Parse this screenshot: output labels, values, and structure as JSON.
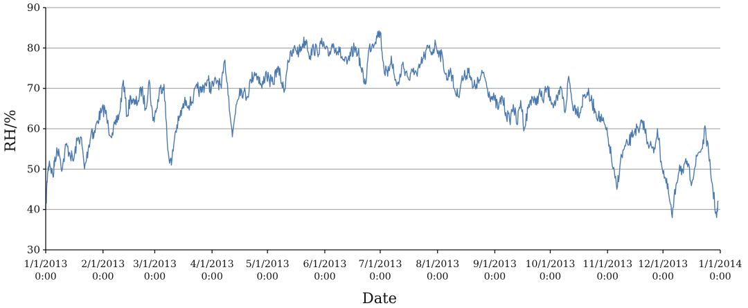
{
  "chart_data": {
    "type": "line",
    "xlabel": "Date",
    "ylabel": "RH/%",
    "ylim": [
      30,
      90
    ],
    "yticks": [
      30,
      40,
      50,
      60,
      70,
      80,
      90
    ],
    "xlim": [
      "2013-01-01",
      "2014-01-01"
    ],
    "grid": "horizontal",
    "xticks": [
      {
        "date": "2013-01-01",
        "label1": "1/1/2013",
        "label2": "0:00"
      },
      {
        "date": "2013-02-01",
        "label1": "2/1/2013",
        "label2": "0:00"
      },
      {
        "date": "2013-03-01",
        "label1": "3/1/2013",
        "label2": "0:00"
      },
      {
        "date": "2013-04-01",
        "label1": "4/1/2013",
        "label2": "0:00"
      },
      {
        "date": "2013-05-01",
        "label1": "5/1/2013",
        "label2": "0:00"
      },
      {
        "date": "2013-06-01",
        "label1": "6/1/2013",
        "label2": "0:00"
      },
      {
        "date": "2013-07-01",
        "label1": "7/1/2013",
        "label2": "0:00"
      },
      {
        "date": "2013-08-01",
        "label1": "8/1/2013",
        "label2": "0:00"
      },
      {
        "date": "2013-09-01",
        "label1": "9/1/2013",
        "label2": "0:00"
      },
      {
        "date": "2013-10-01",
        "label1": "10/1/2013",
        "label2": "0:00"
      },
      {
        "date": "2013-11-01",
        "label1": "11/1/2013",
        "label2": "0:00"
      },
      {
        "date": "2013-12-01",
        "label1": "12/1/2013",
        "label2": "0:00"
      },
      {
        "date": "2014-01-01",
        "label1": "1/1/2014",
        "label2": "0:00"
      }
    ],
    "series": [
      {
        "color": "#4a78b0",
        "x": [
          "2013-01-01",
          "2013-01-02",
          "2013-01-03",
          "2013-01-05",
          "2013-01-06",
          "2013-01-08",
          "2013-01-10",
          "2013-01-12",
          "2013-01-14",
          "2013-01-16",
          "2013-01-18",
          "2013-01-20",
          "2013-01-22",
          "2013-01-24",
          "2013-01-26",
          "2013-01-27",
          "2013-01-29",
          "2013-01-31",
          "2013-02-02",
          "2013-02-04",
          "2013-02-06",
          "2013-02-08",
          "2013-02-10",
          "2013-02-12",
          "2013-02-14",
          "2013-02-16",
          "2013-02-18",
          "2013-02-20",
          "2013-02-22",
          "2013-02-24",
          "2013-02-26",
          "2013-02-28",
          "2013-03-02",
          "2013-03-04",
          "2013-03-06",
          "2013-03-08",
          "2013-03-10",
          "2013-03-12",
          "2013-03-14",
          "2013-03-16",
          "2013-03-18",
          "2013-03-20",
          "2013-03-22",
          "2013-03-24",
          "2013-03-26",
          "2013-03-28",
          "2013-03-30",
          "2013-03-31",
          "2013-04-02",
          "2013-04-04",
          "2013-04-06",
          "2013-04-08",
          "2013-04-10",
          "2013-04-12",
          "2013-04-14",
          "2013-04-16",
          "2013-04-18",
          "2013-04-20",
          "2013-04-22",
          "2013-04-24",
          "2013-04-26",
          "2013-04-28",
          "2013-04-30",
          "2013-05-02",
          "2013-05-04",
          "2013-05-06",
          "2013-05-08",
          "2013-05-10",
          "2013-05-12",
          "2013-05-14",
          "2013-05-16",
          "2013-05-18",
          "2013-05-20",
          "2013-05-22",
          "2013-05-24",
          "2013-05-26",
          "2013-05-28",
          "2013-05-30",
          "2013-06-01",
          "2013-06-03",
          "2013-06-05",
          "2013-06-07",
          "2013-06-09",
          "2013-06-11",
          "2013-06-13",
          "2013-06-15",
          "2013-06-17",
          "2013-06-19",
          "2013-06-21",
          "2013-06-23",
          "2013-06-25",
          "2013-06-27",
          "2013-06-29",
          "2013-07-01",
          "2013-07-03",
          "2013-07-05",
          "2013-07-07",
          "2013-07-09",
          "2013-07-11",
          "2013-07-13",
          "2013-07-15",
          "2013-07-17",
          "2013-07-19",
          "2013-07-21",
          "2013-07-23",
          "2013-07-25",
          "2013-07-27",
          "2013-07-29",
          "2013-07-31",
          "2013-08-02",
          "2013-08-04",
          "2013-08-06",
          "2013-08-08",
          "2013-08-10",
          "2013-08-12",
          "2013-08-14",
          "2013-08-16",
          "2013-08-18",
          "2013-08-20",
          "2013-08-22",
          "2013-08-24",
          "2013-08-26",
          "2013-08-28",
          "2013-08-30",
          "2013-09-01",
          "2013-09-03",
          "2013-09-05",
          "2013-09-07",
          "2013-09-09",
          "2013-09-11",
          "2013-09-13",
          "2013-09-15",
          "2013-09-17",
          "2013-09-19",
          "2013-09-21",
          "2013-09-23",
          "2013-09-25",
          "2013-09-27",
          "2013-09-29",
          "2013-10-01",
          "2013-10-03",
          "2013-10-05",
          "2013-10-07",
          "2013-10-09",
          "2013-10-11",
          "2013-10-13",
          "2013-10-15",
          "2013-10-17",
          "2013-10-19",
          "2013-10-21",
          "2013-10-23",
          "2013-10-25",
          "2013-10-27",
          "2013-10-29",
          "2013-10-31",
          "2013-11-02",
          "2013-11-04",
          "2013-11-06",
          "2013-11-08",
          "2013-11-10",
          "2013-11-12",
          "2013-11-14",
          "2013-11-16",
          "2013-11-18",
          "2013-11-20",
          "2013-11-22",
          "2013-11-24",
          "2013-11-26",
          "2013-11-28",
          "2013-11-30",
          "2013-12-02",
          "2013-12-04",
          "2013-12-06",
          "2013-12-08",
          "2013-12-10",
          "2013-12-12",
          "2013-12-14",
          "2013-12-16",
          "2013-12-18",
          "2013-12-20",
          "2013-12-22",
          "2013-12-24",
          "2013-12-26",
          "2013-12-28",
          "2013-12-30",
          "2013-12-31"
        ],
        "y": [
          40,
          49,
          52,
          48,
          53,
          55,
          50,
          56,
          54,
          52,
          57,
          58,
          50,
          55,
          60,
          58,
          62,
          64,
          65,
          60,
          59,
          61,
          64,
          72,
          63,
          68,
          66,
          67,
          70,
          65,
          72,
          62,
          65,
          70,
          71,
          55,
          51,
          59,
          62,
          65,
          67,
          66,
          68,
          70,
          69,
          71,
          72,
          70,
          71,
          72,
          70,
          77,
          68,
          58,
          66,
          70,
          69,
          68,
          72,
          74,
          73,
          70,
          74,
          72,
          71,
          75,
          73,
          69,
          77,
          78,
          80,
          79,
          81,
          82,
          78,
          80,
          79,
          81,
          80,
          78,
          81,
          80,
          79,
          77,
          76,
          78,
          80,
          79,
          74,
          71,
          80,
          81,
          83,
          84,
          75,
          73,
          78,
          72,
          71,
          76,
          74,
          72,
          75,
          73,
          76,
          78,
          80,
          79,
          81,
          79,
          77,
          72,
          75,
          70,
          68,
          72,
          73,
          75,
          70,
          71,
          72,
          74,
          70,
          68,
          67,
          65,
          68,
          64,
          62,
          66,
          61,
          67,
          60,
          65,
          68,
          66,
          69,
          67,
          70,
          68,
          66,
          67,
          70,
          64,
          73,
          66,
          65,
          64,
          68,
          69,
          67,
          65,
          63,
          62,
          60,
          56,
          50,
          45,
          52,
          55,
          56,
          58,
          60,
          59,
          62,
          58,
          56,
          54,
          60,
          52,
          48,
          44,
          38,
          46,
          51,
          49,
          52,
          47,
          50,
          54,
          55,
          60,
          52,
          45,
          38,
          42
        ]
      }
    ]
  }
}
